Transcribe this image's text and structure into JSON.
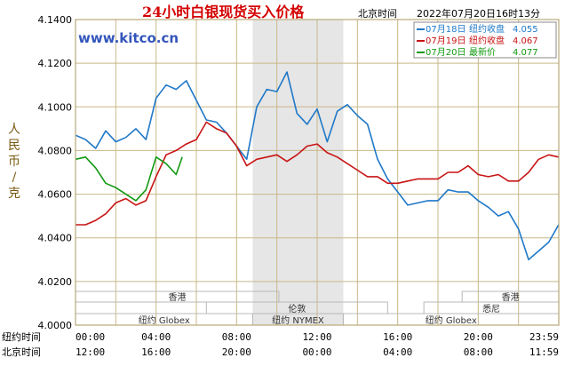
{
  "header": {
    "title": "24小时白银现货买入价格",
    "tz_label": "北京时间",
    "timestamp": "2022年07月20日16时13分",
    "watermark": "www.kitco.cn"
  },
  "axes": {
    "ylabel_chars": [
      "人",
      "民",
      "币",
      "/",
      "克"
    ],
    "row1_label": "纽约时间",
    "row2_label": "北京时间",
    "row1_ticks": [
      "00:00",
      "04:00",
      "08:00",
      "12:00",
      "16:00",
      "20:00",
      "23:59"
    ],
    "row2_ticks": [
      "12:00",
      "16:00",
      "20:00",
      "00:00",
      "04:00",
      "08:00",
      "11:59"
    ]
  },
  "sessions": {
    "row1": [
      {
        "label": "香港",
        "x0": 0,
        "x1": 10.1
      },
      {
        "label": "香港",
        "x0": 19.2,
        "x1": 24
      }
    ],
    "row2": [
      {
        "label": "伦敦",
        "x0": 6.5,
        "x1": 15.5
      },
      {
        "label": "悉尼",
        "x0": 17.3,
        "x1": 24
      }
    ],
    "row3": [
      {
        "label": "纽约 Globex",
        "x0": 0,
        "x1": 8.8
      },
      {
        "label": "纽约 NYMEX",
        "x0": 8.8,
        "x1": 13.3
      },
      {
        "label": "纽约 Globex",
        "x0": 13.3,
        "x1": 24
      }
    ]
  },
  "colors": {
    "background": "#ffffff",
    "plot_background": "#ffffff",
    "grid": "#c8b888",
    "frame": "#b8a878",
    "nymex_shade": "#e6e6e6",
    "series_0718": "#1f78c8",
    "series_0719": "#c81414",
    "series_0720": "#119911"
  },
  "chart_data": {
    "type": "line",
    "title": "24小时白银现货买入价格",
    "ylabel": "人民币/克",
    "xlabel": "",
    "ylim": [
      4.0,
      4.14
    ],
    "xlim": [
      0,
      24
    ],
    "x_unit": "hours (纽约时间)",
    "yticks": [
      "4.0000",
      "4.0200",
      "4.0400",
      "4.0600",
      "4.0800",
      "4.1000",
      "4.1200",
      "4.1400"
    ],
    "grid": true,
    "nymex_session": [
      8.8,
      13.3
    ],
    "legend": {
      "placement": "top-right",
      "entries": [
        {
          "label": "07月18日",
          "kind": "纽约收盘",
          "value": "4.055"
        },
        {
          "label": "07月19日",
          "kind": "纽约收盘",
          "value": "4.067"
        },
        {
          "label": "07月20日",
          "kind": "最新价",
          "value": "4.077"
        }
      ]
    },
    "series": [
      {
        "name": "07月18日",
        "x": [
          0.0,
          0.5,
          1.0,
          1.5,
          2.0,
          2.5,
          3.0,
          3.5,
          4.0,
          4.5,
          5.0,
          5.5,
          6.0,
          6.5,
          7.0,
          7.5,
          8.0,
          8.5,
          9.0,
          9.5,
          10.0,
          10.5,
          11.0,
          11.5,
          12.0,
          12.5,
          13.0,
          13.5,
          14.0,
          14.5,
          15.0,
          15.5,
          16.0,
          16.5,
          17.0,
          17.5,
          18.0,
          18.5,
          19.0,
          19.5,
          20.0,
          20.5,
          21.0,
          21.5,
          22.0,
          22.5,
          23.0,
          23.5,
          23.99
        ],
        "y": [
          4.087,
          4.085,
          4.081,
          4.089,
          4.084,
          4.086,
          4.09,
          4.085,
          4.104,
          4.11,
          4.108,
          4.112,
          4.103,
          4.094,
          4.093,
          4.088,
          4.082,
          4.076,
          4.1,
          4.108,
          4.107,
          4.116,
          4.097,
          4.092,
          4.099,
          4.084,
          4.098,
          4.101,
          4.096,
          4.092,
          4.076,
          4.067,
          4.061,
          4.055,
          4.056,
          4.057,
          4.057,
          4.062,
          4.061,
          4.061,
          4.057,
          4.054,
          4.05,
          4.052,
          4.044,
          4.03,
          4.034,
          4.038,
          4.046
        ]
      },
      {
        "name": "07月19日",
        "x": [
          0.0,
          0.5,
          1.0,
          1.5,
          2.0,
          2.5,
          3.0,
          3.5,
          4.0,
          4.5,
          5.0,
          5.5,
          6.0,
          6.5,
          7.0,
          7.5,
          8.0,
          8.5,
          9.0,
          9.5,
          10.0,
          10.5,
          11.0,
          11.5,
          12.0,
          12.5,
          13.0,
          13.5,
          14.0,
          14.5,
          15.0,
          15.5,
          16.0,
          16.5,
          17.0,
          17.5,
          18.0,
          18.5,
          19.0,
          19.5,
          20.0,
          20.5,
          21.0,
          21.5,
          22.0,
          22.5,
          23.0,
          23.5,
          23.99
        ],
        "y": [
          4.046,
          4.046,
          4.048,
          4.051,
          4.056,
          4.058,
          4.055,
          4.057,
          4.068,
          4.078,
          4.08,
          4.083,
          4.085,
          4.093,
          4.09,
          4.088,
          4.082,
          4.073,
          4.076,
          4.077,
          4.078,
          4.075,
          4.078,
          4.082,
          4.083,
          4.079,
          4.077,
          4.074,
          4.071,
          4.068,
          4.068,
          4.065,
          4.065,
          4.066,
          4.067,
          4.067,
          4.067,
          4.07,
          4.07,
          4.073,
          4.069,
          4.068,
          4.069,
          4.066,
          4.066,
          4.07,
          4.076,
          4.078,
          4.077
        ]
      },
      {
        "name": "07月20日",
        "x": [
          0.0,
          0.5,
          1.0,
          1.5,
          2.0,
          2.5,
          3.0,
          3.5,
          4.0,
          4.5,
          5.0,
          5.3
        ],
        "y": [
          4.076,
          4.077,
          4.072,
          4.065,
          4.063,
          4.06,
          4.057,
          4.062,
          4.077,
          4.074,
          4.069,
          4.077
        ]
      }
    ]
  }
}
